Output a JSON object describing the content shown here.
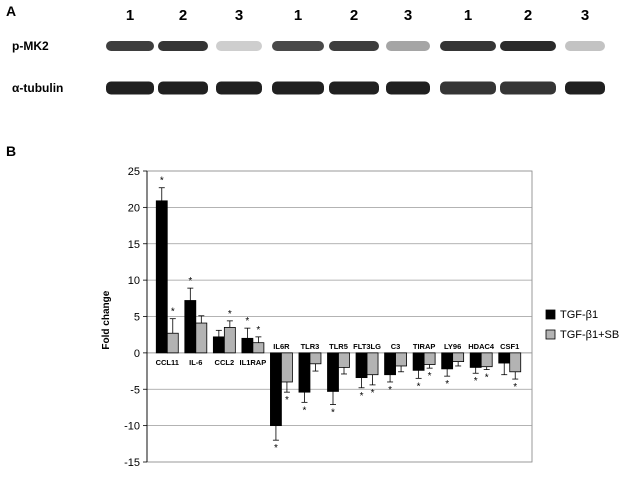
{
  "panel_a": {
    "letter": "A",
    "lanes": [
      "1",
      "2",
      "3",
      "1",
      "2",
      "3",
      "1",
      "2",
      "3"
    ],
    "rows": [
      {
        "label": "p-MK2",
        "intensity": [
          0.85,
          0.9,
          0.15,
          0.8,
          0.85,
          0.35,
          0.9,
          0.95,
          0.2
        ]
      },
      {
        "label": "α-tubulin",
        "intensity": [
          1,
          1,
          1,
          1,
          1,
          1,
          0.9,
          0.9,
          1
        ]
      }
    ]
  },
  "panel_b": {
    "letter": "B"
  },
  "chart_data": {
    "type": "bar",
    "ylabel": "Fold change",
    "ylim": [
      -15,
      25
    ],
    "yticks": [
      -15,
      -10,
      -5,
      0,
      5,
      10,
      15,
      20,
      25
    ],
    "grid": true,
    "legend_position": "right",
    "categories": [
      "CCL11",
      "IL-6",
      "CCL2",
      "IL1RAP",
      "IL6R",
      "TLR3",
      "TLR5",
      "FLT3LG",
      "C3",
      "TIRAP",
      "LY96",
      "HDAC4",
      "CSF1"
    ],
    "series": [
      {
        "name": "TGF-β1",
        "color": "#000000",
        "values": [
          20.9,
          7.2,
          2.2,
          2.0,
          -10.0,
          -5.4,
          -5.3,
          -3.4,
          -3.0,
          -2.4,
          -2.2,
          -2.0,
          -1.4
        ],
        "errors": [
          1.8,
          1.7,
          0.9,
          1.4,
          2.0,
          1.4,
          1.8,
          1.4,
          1.0,
          1.1,
          1.0,
          0.8,
          1.6
        ],
        "stars": [
          true,
          true,
          false,
          true,
          true,
          true,
          true,
          true,
          true,
          true,
          true,
          true,
          false
        ]
      },
      {
        "name": "TGF-β1+SB",
        "color": "#b3b3b3",
        "values": [
          2.7,
          4.1,
          3.5,
          1.4,
          -4.0,
          -1.5,
          -2.0,
          -3.0,
          -1.8,
          -1.6,
          -1.2,
          -1.9,
          -2.6
        ],
        "errors": [
          2.0,
          1.0,
          0.9,
          0.8,
          1.4,
          1.0,
          0.9,
          1.4,
          0.8,
          0.5,
          0.6,
          0.4,
          1.0
        ],
        "stars": [
          true,
          false,
          true,
          true,
          true,
          false,
          false,
          true,
          false,
          true,
          false,
          true,
          true
        ]
      }
    ]
  }
}
